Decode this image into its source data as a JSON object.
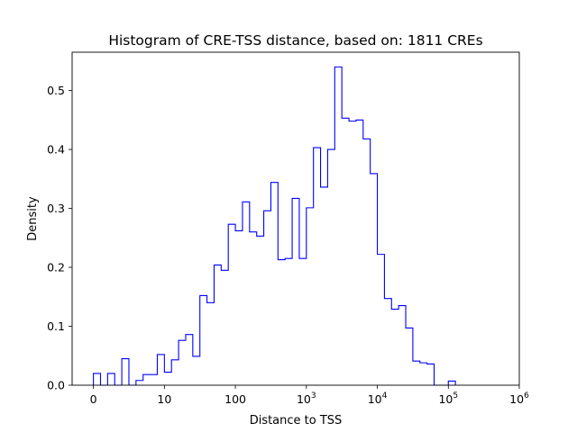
{
  "chart_data": {
    "type": "histogram",
    "title": "Histogram of CRE-TSS distance, based on: 1811 CREs",
    "xlabel": "Distance to TSS",
    "ylabel": "Density",
    "x_scale": "symlog",
    "xlim": [
      -0.3,
      6.0
    ],
    "ylim": [
      0,
      0.565
    ],
    "grid": false,
    "legend": "none",
    "series_color": "#0000ff",
    "x_ticks": [
      {
        "label": "0",
        "pos": 0,
        "exp": ""
      },
      {
        "label": "10",
        "pos": 1,
        "exp": ""
      },
      {
        "label": "100",
        "pos": 2,
        "exp": ""
      },
      {
        "label": "10",
        "pos": 3,
        "exp": "3"
      },
      {
        "label": "10",
        "pos": 4,
        "exp": "4"
      },
      {
        "label": "10",
        "pos": 5,
        "exp": "5"
      },
      {
        "label": "10",
        "pos": 6,
        "exp": "6"
      }
    ],
    "y_ticks": [
      {
        "label": "0.0",
        "value": 0.0
      },
      {
        "label": "0.1",
        "value": 0.1
      },
      {
        "label": "0.2",
        "value": 0.2
      },
      {
        "label": "0.3",
        "value": 0.3
      },
      {
        "label": "0.4",
        "value": 0.4
      },
      {
        "label": "0.5",
        "value": 0.5
      }
    ],
    "bin_start": 0,
    "bin_width": 0.1,
    "densities": [
      0.02,
      0.0,
      0.02,
      0.0,
      0.045,
      0.0,
      0.008,
      0.018,
      0.018,
      0.052,
      0.022,
      0.043,
      0.076,
      0.086,
      0.049,
      0.152,
      0.14,
      0.204,
      0.195,
      0.273,
      0.262,
      0.311,
      0.26,
      0.253,
      0.296,
      0.344,
      0.213,
      0.215,
      0.317,
      0.215,
      0.301,
      0.403,
      0.336,
      0.4,
      0.54,
      0.453,
      0.448,
      0.45,
      0.418,
      0.359,
      0.222,
      0.147,
      0.129,
      0.135,
      0.097,
      0.041,
      0.038,
      0.036,
      0.0,
      0.0,
      0.007
    ]
  }
}
